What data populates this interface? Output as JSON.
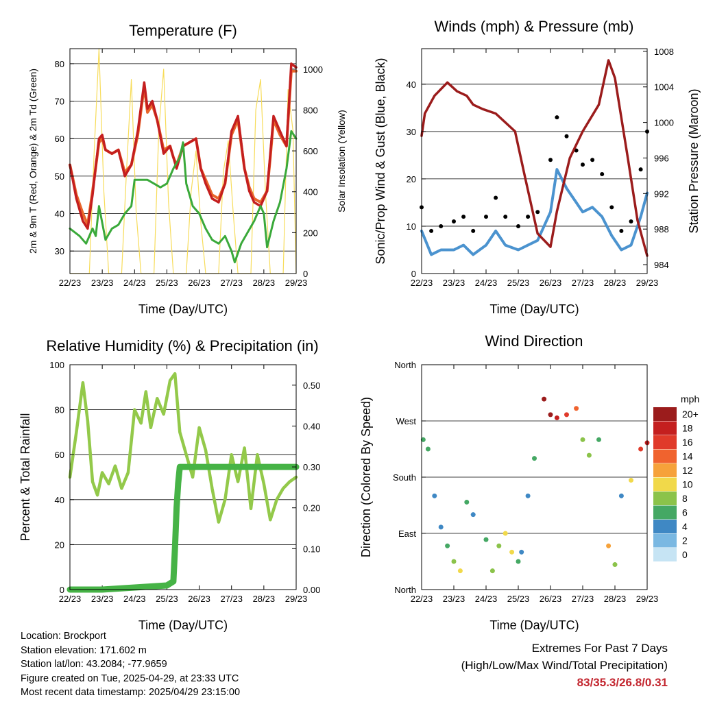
{
  "colors": {
    "temp_2m": "#c41f1f",
    "temp_9m": "#e8652b",
    "dewpoint": "#3aa93a",
    "solar": "#f7dc5a",
    "wind": "#4b93cf",
    "gust": "#000000",
    "pressure": "#9b1c1c",
    "rh": "#93c94a",
    "precip": "#46b346",
    "extremes": "#c3262f"
  },
  "common": {
    "time_ticks": [
      "22/23",
      "23/23",
      "24/23",
      "25/23",
      "26/23",
      "27/23",
      "28/23",
      "29/23"
    ]
  },
  "chart_data": [
    {
      "id": "temperature",
      "type": "line",
      "title": "Temperature (F)",
      "xlabel": "Time (Day/UTC)",
      "ylabel": "2m & 9m T (Red, Orange) & 2m Td (Green)",
      "y2label": "Solar Insolation (Yellow)",
      "ylim": [
        24,
        84
      ],
      "y2lim": [
        0,
        1100
      ],
      "yticks": [
        30,
        40,
        50,
        60,
        70,
        80
      ],
      "y2ticks": [
        0,
        200,
        400,
        600,
        800,
        1000
      ],
      "grid": true,
      "series": [
        {
          "name": "2m T",
          "color": "#c41f1f",
          "x": [
            0,
            0.2,
            0.4,
            0.55,
            0.7,
            0.9,
            1.0,
            1.1,
            1.3,
            1.5,
            1.7,
            1.9,
            2.1,
            2.3,
            2.4,
            2.55,
            2.7,
            2.9,
            3.1,
            3.2,
            3.3,
            3.5,
            3.7,
            3.9,
            4.05,
            4.2,
            4.4,
            4.6,
            4.8,
            5.0,
            5.2,
            5.4,
            5.55,
            5.7,
            5.9,
            6.1,
            6.2,
            6.3,
            6.5,
            6.7,
            6.85,
            7.0
          ],
          "y": [
            53,
            44,
            38,
            36,
            45,
            60,
            61,
            57,
            56,
            57,
            50,
            53,
            62,
            75,
            68,
            70,
            65,
            56,
            58,
            55,
            52,
            58,
            59,
            60,
            52,
            48,
            44,
            43,
            48,
            62,
            66,
            52,
            46,
            43,
            42,
            46,
            56,
            66,
            62,
            58,
            80,
            79
          ]
        },
        {
          "name": "9m T",
          "color": "#e8652b",
          "x": [
            0,
            0.2,
            0.4,
            0.55,
            0.7,
            0.9,
            1.0,
            1.1,
            1.3,
            1.5,
            1.7,
            1.9,
            2.1,
            2.3,
            2.4,
            2.55,
            2.7,
            2.9,
            3.1,
            3.2,
            3.3,
            3.5,
            3.7,
            3.9,
            4.05,
            4.2,
            4.4,
            4.6,
            4.8,
            5.0,
            5.2,
            5.4,
            5.55,
            5.7,
            5.9,
            6.1,
            6.2,
            6.3,
            6.5,
            6.7,
            6.85,
            7.0
          ],
          "y": [
            53,
            45,
            40,
            37,
            46,
            59,
            60,
            57,
            56,
            57,
            51,
            53,
            61,
            74,
            67,
            69,
            65,
            57,
            58,
            55,
            53,
            58,
            59,
            60,
            52,
            49,
            45,
            44,
            48,
            61,
            65,
            52,
            47,
            44,
            43,
            46,
            55,
            65,
            61,
            58,
            78,
            78
          ]
        },
        {
          "name": "2m Td",
          "color": "#3aa93a",
          "x": [
            0,
            0.3,
            0.5,
            0.7,
            0.8,
            0.9,
            1.1,
            1.3,
            1.5,
            1.7,
            1.9,
            2.0,
            2.2,
            2.4,
            2.6,
            2.8,
            3.0,
            3.2,
            3.4,
            3.5,
            3.6,
            3.8,
            4.0,
            4.2,
            4.4,
            4.6,
            4.8,
            5.0,
            5.1,
            5.3,
            5.5,
            5.7,
            5.9,
            6.0,
            6.1,
            6.3,
            6.5,
            6.7,
            6.85,
            7.0
          ],
          "y": [
            36,
            34,
            32,
            36,
            34,
            42,
            33,
            36,
            37,
            40,
            42,
            49,
            49,
            49,
            48,
            47,
            48,
            52,
            55,
            59,
            48,
            42,
            40,
            36,
            33,
            32,
            34,
            30,
            27,
            32,
            35,
            38,
            42,
            40,
            31,
            38,
            43,
            52,
            62,
            60
          ]
        },
        {
          "name": "Solar",
          "color": "#f7dc5a",
          "axis": "y2",
          "x": [
            0,
            0.5,
            0.6,
            0.75,
            0.9,
            1.05,
            1.2,
            1.5,
            1.6,
            1.75,
            1.9,
            2.05,
            2.2,
            2.5,
            2.6,
            2.75,
            2.9,
            3.05,
            3.2,
            3.5,
            3.6,
            3.75,
            3.9,
            4.05,
            4.2,
            4.5,
            4.6,
            4.75,
            4.9,
            5.05,
            5.2,
            5.5,
            5.6,
            5.75,
            5.9,
            6.05,
            6.2,
            6.5,
            6.6,
            6.75,
            6.9,
            7.0
          ],
          "y": [
            0,
            0,
            0,
            600,
            1100,
            400,
            0,
            0,
            0,
            500,
            950,
            300,
            0,
            0,
            0,
            700,
            1000,
            350,
            0,
            0,
            0,
            400,
            600,
            250,
            0,
            0,
            0,
            500,
            650,
            300,
            0,
            0,
            0,
            800,
            950,
            400,
            0,
            0,
            0,
            900,
            700,
            0
          ]
        }
      ]
    },
    {
      "id": "winds",
      "type": "scatter",
      "title": "Winds (mph) & Pressure (mb)",
      "xlabel": "Time (Day/UTC)",
      "ylabel": "Sonic/Prop Wind & Gust (Blue, Black)",
      "y2label": "Station Pressure (Maroon)",
      "ylim": [
        0,
        47.5
      ],
      "y2lim": [
        983,
        1008.3
      ],
      "yticks": [
        0,
        10,
        20,
        30,
        40
      ],
      "y2ticks": [
        984,
        988,
        992,
        996,
        1000,
        1004,
        1008
      ],
      "grid": true,
      "series": [
        {
          "name": "Wind",
          "color": "#4b93cf",
          "x": [
            0,
            0.3,
            0.6,
            1.0,
            1.3,
            1.6,
            2.0,
            2.3,
            2.6,
            3.0,
            3.3,
            3.6,
            4.0,
            4.2,
            4.5,
            4.8,
            5.0,
            5.3,
            5.6,
            5.9,
            6.2,
            6.5,
            6.8,
            7.0
          ],
          "y": [
            9,
            4,
            5,
            5,
            6,
            4,
            6,
            9,
            6,
            5,
            6,
            7,
            13,
            22,
            18,
            15,
            13,
            14,
            12,
            8,
            5,
            6,
            12,
            17
          ]
        },
        {
          "name": "Gust",
          "color": "#000000",
          "x": [
            0,
            0.3,
            0.6,
            1.0,
            1.3,
            1.6,
            2.0,
            2.3,
            2.6,
            3.0,
            3.3,
            3.6,
            4.0,
            4.2,
            4.5,
            4.8,
            5.0,
            5.3,
            5.6,
            5.9,
            6.2,
            6.5,
            6.8,
            7.0
          ],
          "y": [
            14,
            9,
            10,
            11,
            12,
            9,
            12,
            16,
            12,
            10,
            12,
            13,
            24,
            33,
            29,
            26,
            23,
            24,
            21,
            14,
            9,
            11,
            22,
            30
          ]
        },
        {
          "name": "Pressure",
          "color": "#9b1c1c",
          "axis": "y2",
          "x": [
            0,
            0.1,
            0.4,
            0.8,
            1.1,
            1.4,
            1.6,
            1.9,
            2.3,
            2.6,
            2.9,
            3.2,
            3.6,
            4.0,
            4.2,
            4.6,
            5.0,
            5.5,
            5.8,
            6.0,
            6.4,
            6.7,
            7.0
          ],
          "y": [
            998.5,
            1001,
            1003,
            1004.5,
            1003.5,
            1003,
            1002,
            1001.5,
            1001,
            1000,
            999,
            994,
            987.5,
            986,
            990,
            996,
            999,
            1002,
            1007,
            1005,
            996,
            989,
            985
          ]
        }
      ]
    },
    {
      "id": "humidity",
      "type": "line",
      "title": "Relative Humidity (%) & Precipitation (in)",
      "xlabel": "Time (Day/UTC)",
      "ylabel": "Percent & Total Rainfall",
      "ylim": [
        0,
        100
      ],
      "y2lim": [
        0,
        0.55
      ],
      "yticks": [
        0,
        20,
        40,
        60,
        80,
        100
      ],
      "y2ticks": [
        "0.00",
        "0.10",
        "0.20",
        "0.30",
        "0.40",
        "0.50"
      ],
      "grid": true,
      "series": [
        {
          "name": "RH",
          "color": "#93c94a",
          "x": [
            0,
            0.2,
            0.4,
            0.55,
            0.7,
            0.85,
            1.0,
            1.2,
            1.4,
            1.6,
            1.8,
            2.0,
            2.2,
            2.35,
            2.5,
            2.7,
            2.9,
            3.1,
            3.25,
            3.4,
            3.6,
            3.8,
            4.0,
            4.2,
            4.4,
            4.6,
            4.8,
            5.0,
            5.2,
            5.4,
            5.6,
            5.8,
            6.0,
            6.2,
            6.4,
            6.6,
            6.8,
            7.0
          ],
          "y": [
            50,
            70,
            92,
            75,
            48,
            42,
            52,
            47,
            55,
            45,
            52,
            80,
            74,
            88,
            72,
            85,
            78,
            93,
            96,
            70,
            60,
            50,
            72,
            62,
            45,
            30,
            40,
            60,
            48,
            63,
            36,
            60,
            47,
            31,
            40,
            45,
            48,
            50
          ]
        },
        {
          "name": "Precip",
          "color": "#46b346",
          "axis": "y2",
          "x": [
            0,
            1.0,
            2.0,
            3.0,
            3.2,
            3.25,
            3.3,
            3.35,
            3.4,
            3.5,
            4.0,
            5.0,
            6.0,
            7.0
          ],
          "y": [
            0,
            0,
            0.005,
            0.01,
            0.02,
            0.1,
            0.2,
            0.26,
            0.3,
            0.3,
            0.3,
            0.3,
            0.3,
            0.3
          ]
        }
      ]
    },
    {
      "id": "wind-direction",
      "type": "scatter",
      "title": "Wind Direction",
      "xlabel": "Time (Day/UTC)",
      "ylabel": "Direction (Colored By Speed)",
      "ylim": [
        0,
        360
      ],
      "yticks": [
        "North",
        "East",
        "South",
        "West",
        "North"
      ],
      "legend_title": "mph",
      "legend_labels": [
        "20+",
        "18",
        "16",
        "14",
        "12",
        "10",
        "8",
        "6",
        "4",
        "2",
        "0"
      ],
      "legend_colors": [
        "#9b1c1c",
        "#c41f1f",
        "#e03a2a",
        "#f0632e",
        "#f6a23a",
        "#f1d94a",
        "#8bc34a",
        "#45a864",
        "#3f88c4",
        "#7ab8e2",
        "#c6e4f4"
      ],
      "series": [
        {
          "name": "Direction",
          "x": [
            0.05,
            0.2,
            0.4,
            0.6,
            0.8,
            1.0,
            1.2,
            1.4,
            1.6,
            2.0,
            2.2,
            2.4,
            2.6,
            2.8,
            3.0,
            3.1,
            3.3,
            3.5,
            3.8,
            4.0,
            4.2,
            4.5,
            4.8,
            5.0,
            5.2,
            5.5,
            5.8,
            6.0,
            6.2,
            6.5,
            6.8,
            7.0
          ],
          "y": [
            240,
            225,
            150,
            100,
            70,
            45,
            30,
            140,
            120,
            80,
            30,
            70,
            90,
            60,
            45,
            60,
            150,
            210,
            305,
            280,
            275,
            280,
            290,
            240,
            215,
            240,
            70,
            40,
            150,
            175,
            225,
            235
          ],
          "speed": [
            6,
            6,
            4,
            4,
            5,
            8,
            10,
            5,
            4,
            5,
            7,
            8,
            9,
            10,
            6,
            4,
            3,
            6,
            20,
            20,
            18,
            16,
            14,
            8,
            7,
            6,
            12,
            8,
            4,
            10,
            16,
            18
          ]
        }
      ]
    }
  ],
  "info": {
    "location": "Location: Brockport",
    "elevation": "Station elevation: 171.602 m",
    "latlon": "Station lat/lon: 43.2084; -77.9659",
    "created": "Figure created on Tue, 2025-04-29, at 23:33 UTC",
    "recent": "Most recent data timestamp: 2025/04/29 23:15:00"
  },
  "extremes": {
    "line1": "Extremes For Past 7 Days",
    "line2": "(High/Low/Max Wind/Total Precipitation)",
    "values": "83/35.3/26.8/0.31"
  }
}
